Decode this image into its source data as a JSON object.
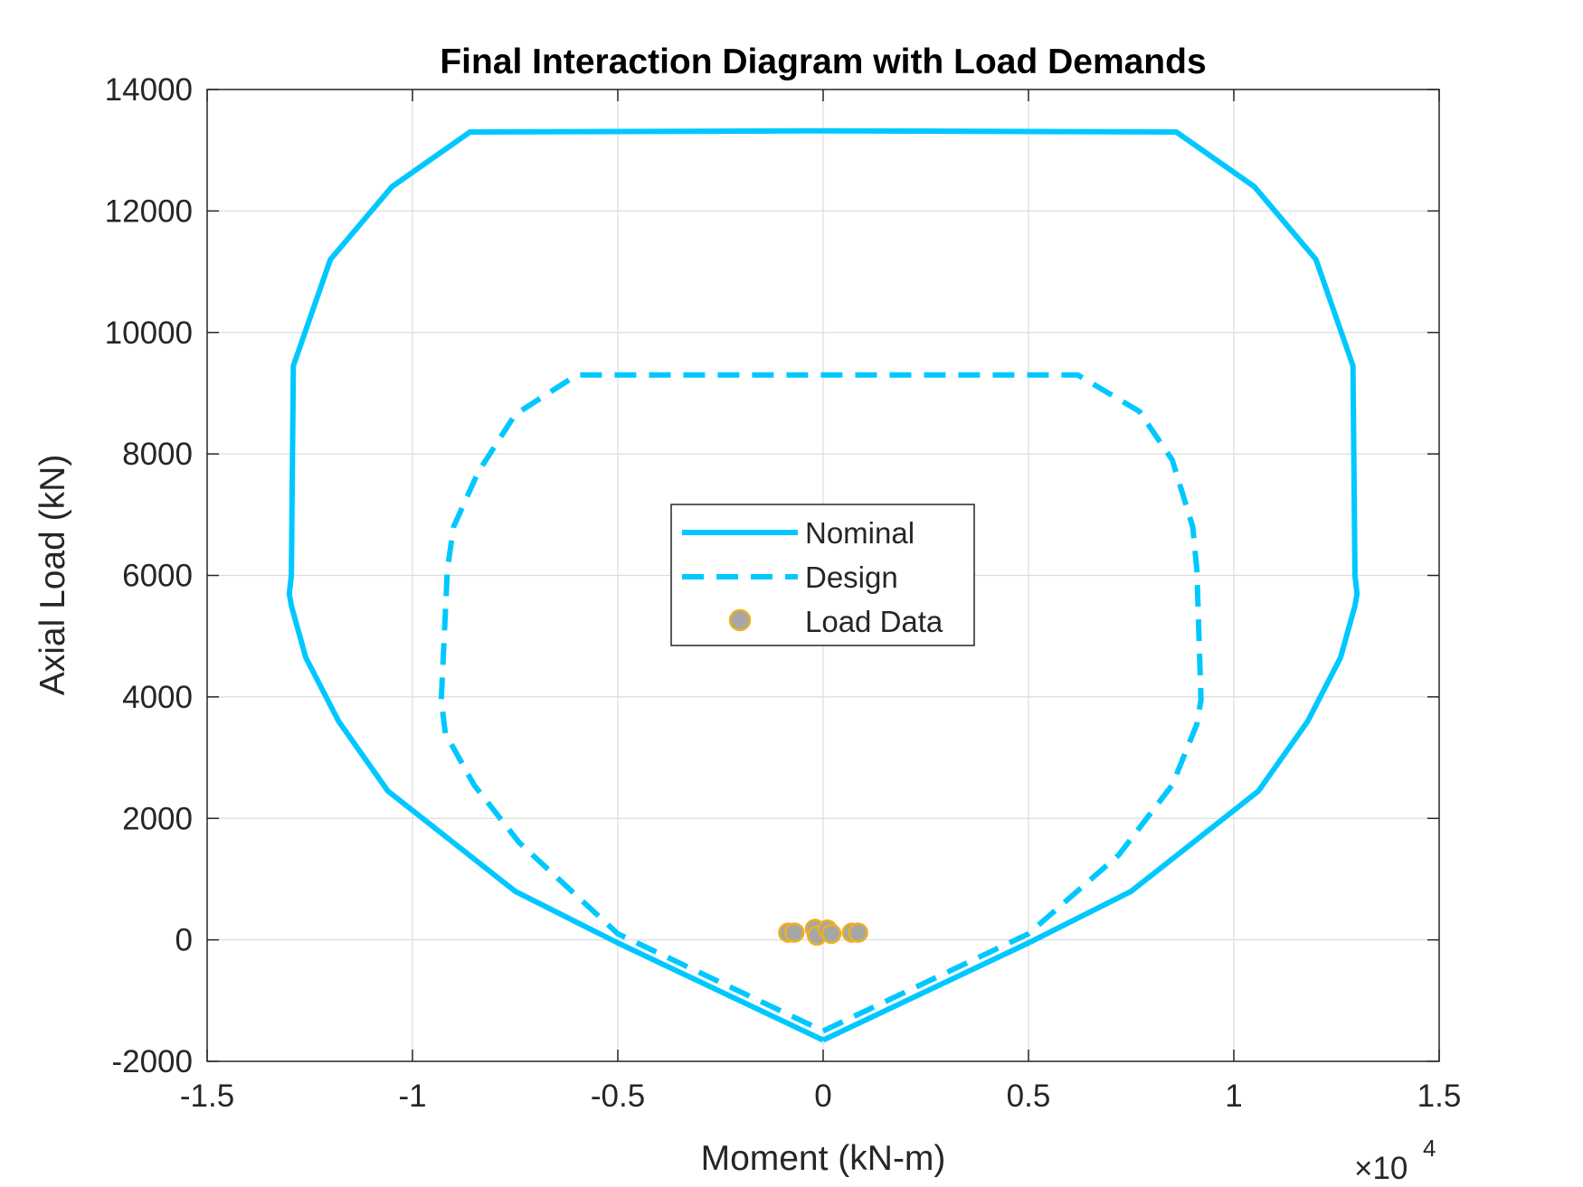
{
  "chart_data": {
    "type": "line",
    "title": "Final Interaction Diagram with Load Demands",
    "xlabel": "Moment (kN-m)",
    "ylabel": "Axial Load (kN)",
    "x_exponent_base": "×10",
    "x_exponent": "4",
    "xlim": [
      -1.5,
      1.5
    ],
    "ylim": [
      -2000,
      14000
    ],
    "xticks": [
      -1.5,
      -1,
      -0.5,
      0,
      0.5,
      1,
      1.5
    ],
    "xtick_labels": [
      "-1.5",
      "-1",
      "-0.5",
      "0",
      "0.5",
      "1",
      "1.5"
    ],
    "yticks": [
      -2000,
      0,
      2000,
      4000,
      6000,
      8000,
      10000,
      12000,
      14000
    ],
    "ytick_labels": [
      "-2000",
      "0",
      "2000",
      "4000",
      "6000",
      "8000",
      "10000",
      "12000",
      "14000"
    ],
    "grid": true,
    "legend_position": "center",
    "series": [
      {
        "name": "Nominal",
        "style": "solid",
        "color": "#00C8FF",
        "points": [
          [
            0,
            -1650
          ],
          [
            0.5,
            -50
          ],
          [
            0.75,
            800
          ],
          [
            1.06,
            2450
          ],
          [
            1.18,
            3600
          ],
          [
            1.26,
            4650
          ],
          [
            1.295,
            5500
          ],
          [
            1.3,
            5700
          ],
          [
            1.295,
            6000
          ],
          [
            1.29,
            9450
          ],
          [
            1.2,
            11200
          ],
          [
            1.05,
            12400
          ],
          [
            0.86,
            13300
          ],
          [
            0,
            13320
          ],
          [
            -0.86,
            13300
          ],
          [
            -1.05,
            12400
          ],
          [
            -1.2,
            11200
          ],
          [
            -1.29,
            9450
          ],
          [
            -1.295,
            6000
          ],
          [
            -1.3,
            5700
          ],
          [
            -1.295,
            5500
          ],
          [
            -1.26,
            4650
          ],
          [
            -1.18,
            3600
          ],
          [
            -1.06,
            2450
          ],
          [
            -0.75,
            800
          ],
          [
            -0.5,
            -50
          ],
          [
            0,
            -1650
          ]
        ]
      },
      {
        "name": "Design",
        "style": "dashed",
        "color": "#00C8FF",
        "points": [
          [
            0,
            -1500
          ],
          [
            0.5,
            100
          ],
          [
            0.72,
            1400
          ],
          [
            0.85,
            2550
          ],
          [
            0.91,
            3550
          ],
          [
            0.92,
            3950
          ],
          [
            0.91,
            6100
          ],
          [
            0.9,
            6800
          ],
          [
            0.85,
            7900
          ],
          [
            0.77,
            8700
          ],
          [
            0.62,
            9300
          ],
          [
            0,
            9300
          ],
          [
            -0.6,
            9300
          ],
          [
            -0.75,
            8650
          ],
          [
            -0.84,
            7700
          ],
          [
            -0.9,
            6800
          ],
          [
            -0.915,
            6100
          ],
          [
            -0.93,
            3950
          ],
          [
            -0.92,
            3400
          ],
          [
            -0.85,
            2550
          ],
          [
            -0.74,
            1600
          ],
          [
            -0.5,
            100
          ],
          [
            0,
            -1500
          ]
        ]
      },
      {
        "name": "Load Data",
        "style": "markers",
        "color": "#A6A6A6",
        "edge_color": "#EDB120",
        "points": [
          [
            -0.085,
            120
          ],
          [
            -0.07,
            120
          ],
          [
            -0.02,
            180
          ],
          [
            -0.015,
            70
          ],
          [
            0.01,
            170
          ],
          [
            0.02,
            100
          ],
          [
            0.07,
            120
          ],
          [
            0.085,
            120
          ]
        ]
      }
    ]
  }
}
